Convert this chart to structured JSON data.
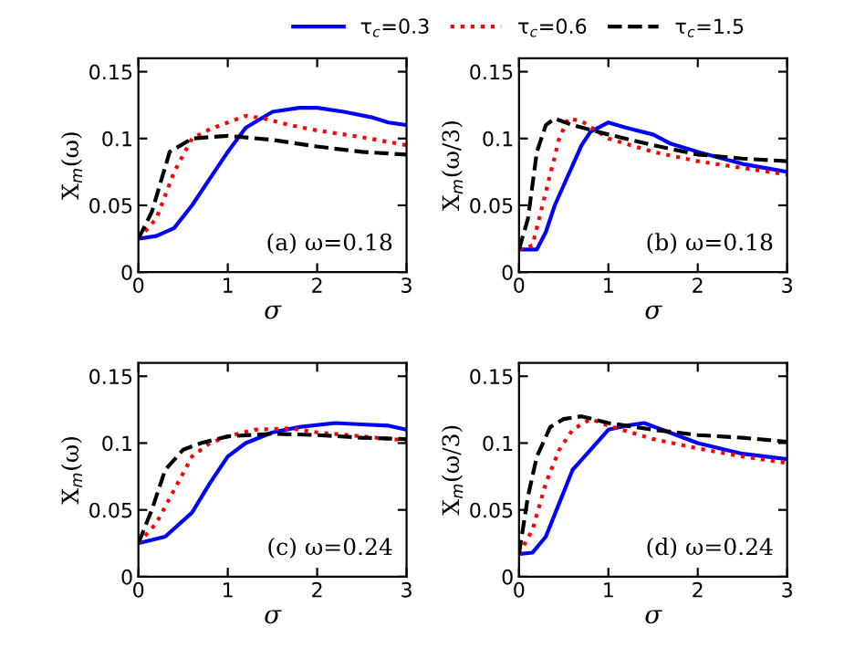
{
  "chart_data": [
    {
      "type": "line",
      "xlabel": "σ",
      "ylabel": "X$_{m}$(ω)",
      "annotations": [
        "(a) ω=0.18"
      ],
      "xlim": [
        0,
        3
      ],
      "ylim": [
        0,
        0.16
      ],
      "xticks": [
        0,
        1,
        2,
        3
      ],
      "yticks": [
        0,
        0.05,
        0.1,
        0.15
      ],
      "legend": "top",
      "grid": false,
      "series": [
        {
          "name": "τ$_{c}$=0.3",
          "color": "#0000ff",
          "line_style": "solid",
          "x": [
            0,
            0.2,
            0.4,
            0.6,
            0.8,
            1.0,
            1.2,
            1.5,
            1.8,
            2.0,
            2.3,
            2.6,
            2.8,
            3
          ],
          "values": [
            0.025,
            0.027,
            0.033,
            0.05,
            0.07,
            0.09,
            0.108,
            0.12,
            0.123,
            0.123,
            0.12,
            0.116,
            0.112,
            0.11
          ]
        },
        {
          "name": "τ$_{c}$=0.6",
          "color": "#ff0000",
          "line_style": "dotted",
          "x": [
            0,
            0.2,
            0.4,
            0.6,
            0.8,
            1.0,
            1.2,
            1.4,
            1.7,
            2.0,
            2.5,
            3
          ],
          "values": [
            0.025,
            0.04,
            0.075,
            0.1,
            0.107,
            0.112,
            0.117,
            0.115,
            0.11,
            0.106,
            0.101,
            0.095
          ]
        },
        {
          "name": "τ$_{c}$=1.5",
          "color": "#000000",
          "line_style": "dashed",
          "x": [
            0,
            0.15,
            0.35,
            0.6,
            1.0,
            1.5,
            2.0,
            2.5,
            3
          ],
          "values": [
            0.025,
            0.045,
            0.09,
            0.1,
            0.102,
            0.099,
            0.094,
            0.09,
            0.088
          ]
        }
      ]
    },
    {
      "type": "line",
      "xlabel": "σ",
      "ylabel": "X$_{m}$(ω/3)",
      "annotations": [
        "(b) ω=0.18"
      ],
      "xlim": [
        0,
        3
      ],
      "ylim": [
        0,
        0.16
      ],
      "xticks": [
        0,
        1,
        2,
        3
      ],
      "yticks": [
        0,
        0.05,
        0.1,
        0.15
      ],
      "grid": false,
      "series": [
        {
          "color": "#0000ff",
          "line_style": "solid",
          "x": [
            0,
            0.2,
            0.3,
            0.4,
            0.5,
            0.6,
            0.7,
            0.8,
            1.0,
            1.2,
            1.5,
            1.7,
            2,
            2.5,
            3
          ],
          "values": [
            0.017,
            0.017,
            0.03,
            0.05,
            0.065,
            0.08,
            0.095,
            0.105,
            0.112,
            0.108,
            0.103,
            0.096,
            0.09,
            0.081,
            0.075
          ]
        },
        {
          "color": "#ff0000",
          "line_style": "dotted",
          "x": [
            0,
            0.15,
            0.3,
            0.45,
            0.55,
            0.7,
            1.0,
            1.5,
            2,
            2.5,
            3
          ],
          "values": [
            0.017,
            0.02,
            0.06,
            0.1,
            0.115,
            0.113,
            0.1,
            0.09,
            0.083,
            0.078,
            0.073
          ]
        },
        {
          "color": "#000000",
          "line_style": "dashed",
          "x": [
            0,
            0.1,
            0.2,
            0.3,
            0.4,
            0.6,
            1.0,
            1.5,
            2,
            2.5,
            3
          ],
          "values": [
            0.017,
            0.04,
            0.09,
            0.11,
            0.115,
            0.11,
            0.103,
            0.095,
            0.088,
            0.085,
            0.083
          ]
        }
      ]
    },
    {
      "type": "line",
      "xlabel": "σ",
      "ylabel": "X$_{m}$(ω)",
      "annotations": [
        "(c) ω=0.24"
      ],
      "xlim": [
        0,
        3
      ],
      "ylim": [
        0,
        0.16
      ],
      "xticks": [
        0,
        1,
        2,
        3
      ],
      "yticks": [
        0,
        0.05,
        0.1,
        0.15
      ],
      "grid": false,
      "series": [
        {
          "color": "#0000ff",
          "line_style": "solid",
          "x": [
            0,
            0.3,
            0.6,
            0.8,
            1.0,
            1.2,
            1.5,
            1.8,
            2.2,
            2.5,
            2.8,
            3
          ],
          "values": [
            0.025,
            0.03,
            0.048,
            0.07,
            0.09,
            0.1,
            0.108,
            0.112,
            0.115,
            0.114,
            0.113,
            0.11
          ]
        },
        {
          "color": "#ff0000",
          "line_style": "dotted",
          "x": [
            0,
            0.2,
            0.4,
            0.6,
            0.8,
            1.0,
            1.3,
            1.7,
            2.0,
            2.5,
            3
          ],
          "values": [
            0.025,
            0.04,
            0.065,
            0.09,
            0.1,
            0.105,
            0.11,
            0.111,
            0.108,
            0.105,
            0.102
          ]
        },
        {
          "color": "#000000",
          "line_style": "dashed",
          "x": [
            0,
            0.15,
            0.3,
            0.5,
            0.7,
            1.0,
            1.5,
            2.0,
            2.5,
            3
          ],
          "values": [
            0.025,
            0.05,
            0.08,
            0.095,
            0.1,
            0.105,
            0.107,
            0.106,
            0.104,
            0.103
          ]
        }
      ]
    },
    {
      "type": "line",
      "xlabel": "σ",
      "ylabel": "X$_{m}$(ω/3)",
      "annotations": [
        "(d) ω=0.24"
      ],
      "xlim": [
        0,
        3
      ],
      "ylim": [
        0,
        0.16
      ],
      "xticks": [
        0,
        1,
        2,
        3
      ],
      "yticks": [
        0,
        0.05,
        0.1,
        0.15
      ],
      "grid": false,
      "series": [
        {
          "color": "#0000ff",
          "line_style": "solid",
          "x": [
            0,
            0.15,
            0.3,
            0.45,
            0.6,
            0.8,
            1.0,
            1.2,
            1.4,
            1.6,
            2,
            2.5,
            3
          ],
          "values": [
            0.017,
            0.018,
            0.03,
            0.055,
            0.08,
            0.095,
            0.11,
            0.113,
            0.115,
            0.11,
            0.1,
            0.092,
            0.088
          ]
        },
        {
          "color": "#ff0000",
          "line_style": "dotted",
          "x": [
            0,
            0.15,
            0.3,
            0.45,
            0.6,
            0.8,
            1.0,
            1.5,
            2.0,
            2.5,
            3
          ],
          "values": [
            0.017,
            0.035,
            0.07,
            0.095,
            0.11,
            0.118,
            0.113,
            0.103,
            0.096,
            0.09,
            0.085
          ]
        },
        {
          "color": "#000000",
          "line_style": "dashed",
          "x": [
            0,
            0.1,
            0.2,
            0.35,
            0.5,
            0.7,
            1.0,
            1.5,
            2,
            2.5,
            3
          ],
          "values": [
            0.017,
            0.06,
            0.09,
            0.112,
            0.118,
            0.12,
            0.115,
            0.11,
            0.106,
            0.104,
            0.101
          ]
        }
      ]
    }
  ]
}
